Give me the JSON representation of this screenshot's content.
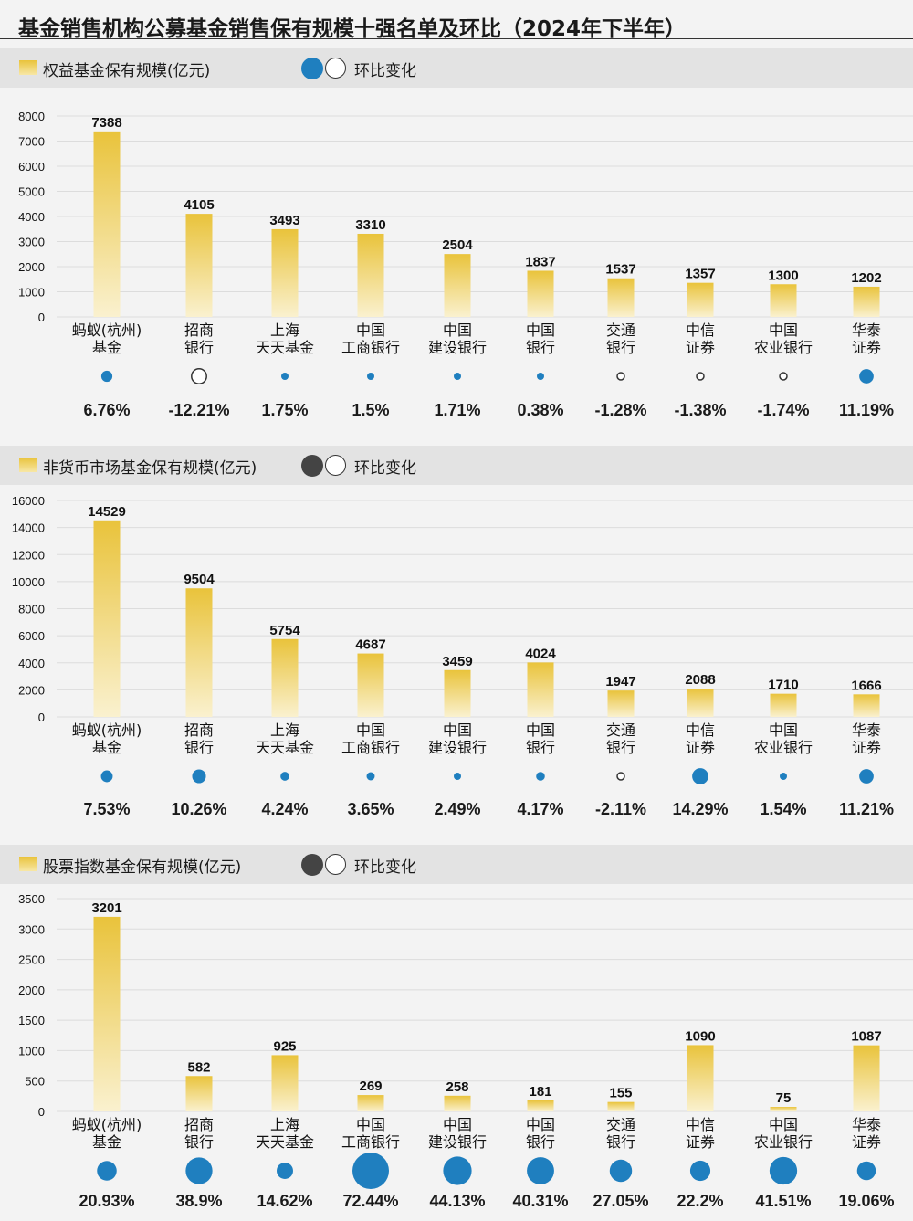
{
  "title": "基金销售机构公募基金销售保有规模十强名单及环比（2024年下半年）",
  "chart_data": [
    {
      "type": "bar",
      "title": "权益基金保有规模(亿元)",
      "change_label": "环比变化",
      "categories": [
        [
          "蚂蚁(杭州)",
          "基金"
        ],
        [
          "招商",
          "银行"
        ],
        [
          "上海",
          "天天基金"
        ],
        [
          "中国",
          "工商银行"
        ],
        [
          "中国",
          "建设银行"
        ],
        [
          "中国",
          "银行"
        ],
        [
          "交通",
          "银行"
        ],
        [
          "中信",
          "证券"
        ],
        [
          "中国",
          "农业银行"
        ],
        [
          "华泰",
          "证券"
        ]
      ],
      "values": [
        7388,
        4105,
        3493,
        3310,
        2504,
        1837,
        1537,
        1357,
        1300,
        1202
      ],
      "changes": [
        6.76,
        -12.21,
        1.75,
        1.5,
        1.71,
        0.38,
        -1.28,
        -1.38,
        -1.74,
        11.19
      ],
      "change_labels": [
        "6.76%",
        "-12.21%",
        "1.75%",
        "1.5%",
        "1.71%",
        "0.38%",
        "-1.28%",
        "-1.38%",
        "-1.74%",
        "11.19%"
      ],
      "yticks": [
        0,
        1000,
        2000,
        3000,
        4000,
        5000,
        6000,
        7000,
        8000
      ],
      "ylim": [
        0,
        8000
      ],
      "dot_color": "#1f7fbf",
      "legend_dot_color": "#1f7fbf",
      "bar_color": "#e9c33b"
    },
    {
      "type": "bar",
      "title": "非货币市场基金保有规模(亿元)",
      "change_label": "环比变化",
      "categories": [
        [
          "蚂蚁(杭州)",
          "基金"
        ],
        [
          "招商",
          "银行"
        ],
        [
          "上海",
          "天天基金"
        ],
        [
          "中国",
          "工商银行"
        ],
        [
          "中国",
          "建设银行"
        ],
        [
          "中国",
          "银行"
        ],
        [
          "交通",
          "银行"
        ],
        [
          "中信",
          "证券"
        ],
        [
          "中国",
          "农业银行"
        ],
        [
          "华泰",
          "证券"
        ]
      ],
      "values": [
        14529,
        9504,
        5754,
        4687,
        3459,
        4024,
        1947,
        2088,
        1710,
        1666
      ],
      "changes": [
        7.53,
        10.26,
        4.24,
        3.65,
        2.49,
        4.17,
        -2.11,
        14.29,
        1.54,
        11.21
      ],
      "change_labels": [
        "7.53%",
        "10.26%",
        "4.24%",
        "3.65%",
        "2.49%",
        "4.17%",
        "-2.11%",
        "14.29%",
        "1.54%",
        "11.21%"
      ],
      "yticks": [
        0,
        2000,
        4000,
        6000,
        8000,
        10000,
        12000,
        14000,
        16000
      ],
      "ylim": [
        0,
        16000
      ],
      "dot_color": "#1f7fbf",
      "legend_dot_color": "#444444",
      "bar_color": "#e9c33b"
    },
    {
      "type": "bar",
      "title": "股票指数基金保有规模(亿元)",
      "change_label": "环比变化",
      "categories": [
        [
          "蚂蚁(杭州)",
          "基金"
        ],
        [
          "招商",
          "银行"
        ],
        [
          "上海",
          "天天基金"
        ],
        [
          "中国",
          "工商银行"
        ],
        [
          "中国",
          "建设银行"
        ],
        [
          "中国",
          "银行"
        ],
        [
          "交通",
          "银行"
        ],
        [
          "中信",
          "证券"
        ],
        [
          "中国",
          "农业银行"
        ],
        [
          "华泰",
          "证券"
        ]
      ],
      "values": [
        3201,
        582,
        925,
        269,
        258,
        181,
        155,
        1090,
        75,
        1087
      ],
      "changes": [
        20.93,
        38.9,
        14.62,
        72.44,
        44.13,
        40.31,
        27.05,
        22.2,
        41.51,
        19.06
      ],
      "change_labels": [
        "20.93%",
        "38.9%",
        "14.62%",
        "72.44%",
        "44.13%",
        "40.31%",
        "27.05%",
        "22.2%",
        "41.51%",
        "19.06%"
      ],
      "yticks": [
        0,
        500,
        1000,
        1500,
        2000,
        2500,
        3000,
        3500
      ],
      "ylim": [
        0,
        3500
      ],
      "dot_color": "#1f7fbf",
      "legend_dot_color": "#444444",
      "bar_color": "#e9c33b"
    }
  ]
}
